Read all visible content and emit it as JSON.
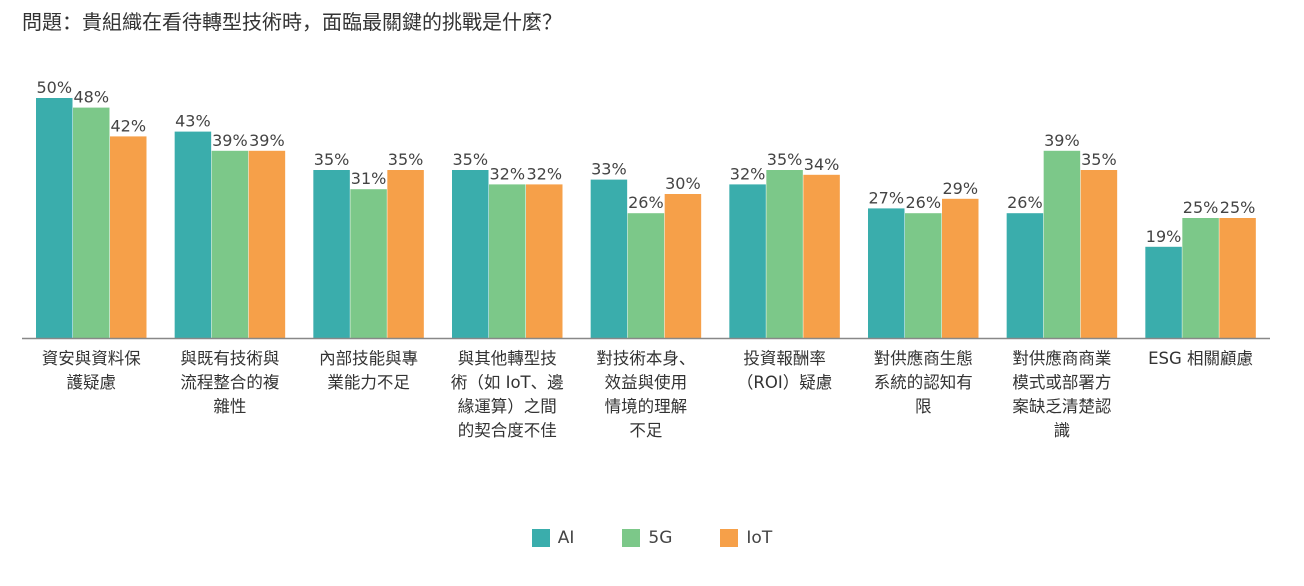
{
  "question": "問題：貴組織在看待轉型技術時，面臨最關鍵的挑戰是什麼？",
  "colors": {
    "AI": "#3aadac",
    "5G": "#7cc889",
    "IoT": "#f6a049",
    "axis": "#888888"
  },
  "chart_data": {
    "type": "bar",
    "title": "",
    "xlabel": "",
    "ylabel": "",
    "ylim": [
      0,
      60
    ],
    "grid": false,
    "legend_position": "bottom-center",
    "categories": [
      [
        "資安與資料保",
        "護疑慮"
      ],
      [
        "與既有技術與",
        "流程整合的複",
        "雜性"
      ],
      [
        "內部技能與專",
        "業能力不足"
      ],
      [
        "與其他轉型技",
        "術（如 IoT、邊",
        "緣運算）之間",
        "的契合度不佳"
      ],
      [
        "對技術本身、",
        "效益與使用",
        "情境的理解",
        "不足"
      ],
      [
        "投資報酬率",
        "（ROI）疑慮"
      ],
      [
        "對供應商生態",
        "系統的認知有",
        "限"
      ],
      [
        "對供應商商業",
        "模式或部署方",
        "案缺乏清楚認",
        "識"
      ],
      [
        "ESG 相關顧慮"
      ]
    ],
    "series": [
      {
        "name": "AI",
        "values": [
          50,
          43,
          35,
          35,
          33,
          32,
          27,
          26,
          19
        ],
        "labels": [
          "50%",
          "43%",
          "35%",
          "35%",
          "33%",
          "32%",
          "27%",
          "26%",
          "19%"
        ]
      },
      {
        "name": "5G",
        "values": [
          48,
          39,
          31,
          32,
          26,
          35,
          26,
          39,
          25
        ],
        "labels": [
          "48%",
          "39%",
          "31%",
          "32%",
          "26%",
          "35%",
          "26%",
          "39%",
          "25%"
        ]
      },
      {
        "name": "IoT",
        "values": [
          42,
          39,
          35,
          32,
          30,
          34,
          29,
          35,
          25
        ],
        "labels": [
          "42%",
          "39%",
          "35%",
          "32%",
          "30%",
          "34%",
          "29%",
          "35%",
          "25%"
        ]
      }
    ]
  }
}
